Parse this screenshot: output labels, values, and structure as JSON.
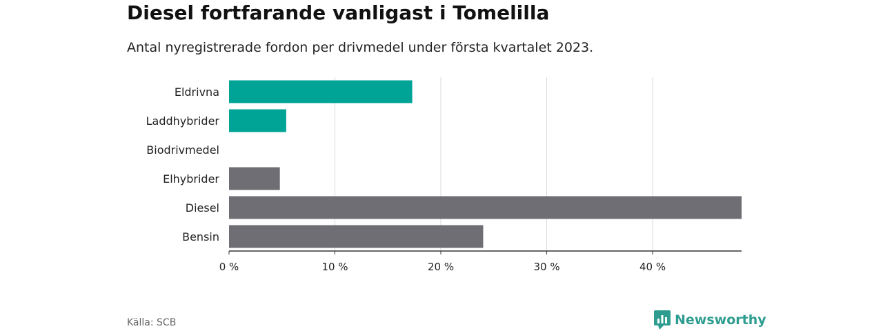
{
  "header": {
    "title": "Diesel fortfarande vanligast i Tomelilla",
    "subtitle": "Antal nyregistrerade fordon per drivmedel under första kvartalet 2023."
  },
  "chart_data": {
    "type": "bar",
    "orientation": "horizontal",
    "categories": [
      "Eldrivna",
      "Laddhybrider",
      "Biodrivmedel",
      "Elhybrider",
      "Diesel",
      "Bensin"
    ],
    "values": [
      17.3,
      5.4,
      0,
      4.8,
      48.4,
      24.0
    ],
    "colors": [
      "#00a497",
      "#00a497",
      "#00a497",
      "#6e6e74",
      "#6e6e74",
      "#6e6e74"
    ],
    "xlim": [
      0,
      48.4
    ],
    "xticks": [
      0,
      10,
      20,
      30,
      40
    ],
    "xtick_labels": [
      "0 %",
      "10 %",
      "20 %",
      "30 %",
      "40 %"
    ],
    "grid": true
  },
  "footer": {
    "source": "Källa: SCB",
    "brand": "Newsworthy",
    "brand_color": "#2e9c8f"
  }
}
